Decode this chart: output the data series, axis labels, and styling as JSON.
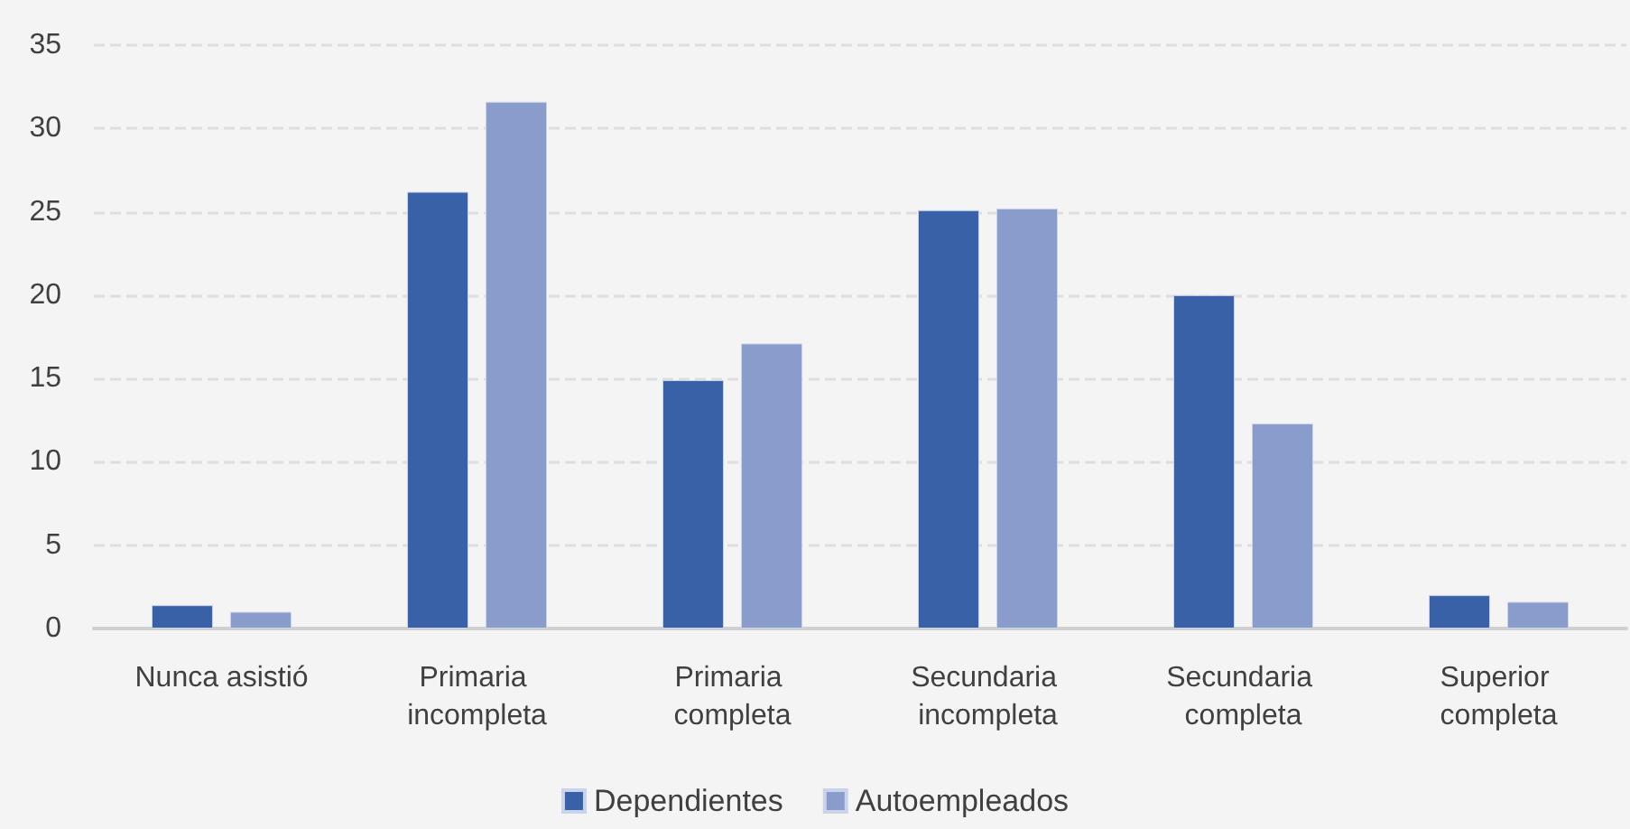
{
  "chart_data": {
    "type": "bar",
    "categories": [
      "Nunca asistió",
      "Primaria incompleta",
      "Primaria completa",
      "Secundaria incompleta",
      "Secundaria completa",
      "Superior completa"
    ],
    "series": [
      {
        "name": "Dependientes",
        "color": "#3861a8",
        "values": [
          1.4,
          26.2,
          14.9,
          25.1,
          20.0,
          2.0
        ]
      },
      {
        "name": "Autoempleados",
        "color": "#8a9ccb",
        "values": [
          1.0,
          31.6,
          17.1,
          25.2,
          12.3,
          1.6
        ]
      }
    ],
    "ylim": [
      0,
      35
    ],
    "yticks": [
      0,
      5,
      10,
      15,
      20,
      25,
      30,
      35
    ],
    "grid": "y",
    "legend": "bottom"
  }
}
